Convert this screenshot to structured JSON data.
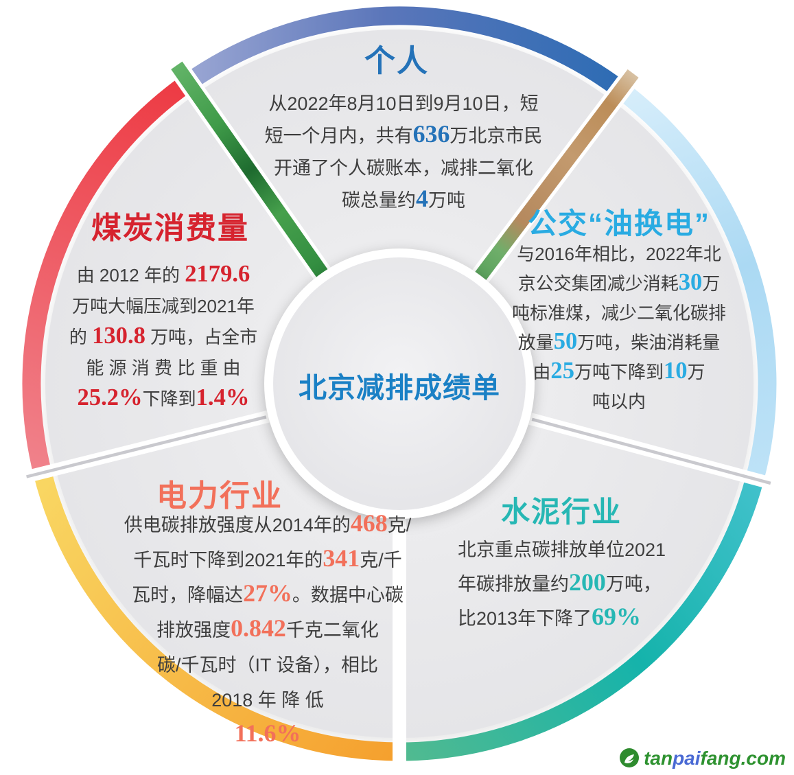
{
  "center": {
    "title": "北京减排成绩单"
  },
  "sections": {
    "personal": {
      "title": "个人",
      "accent_color": "#2472b8",
      "runs": [
        {
          "t": "从2022年8月10日到9月10日，短"
        },
        {
          "br": true
        },
        {
          "t": "短一个月内，共有"
        },
        {
          "t": "636",
          "hl": true
        },
        {
          "t": "万北京市民"
        },
        {
          "br": true
        },
        {
          "t": "开通了个人碳账本，减排二氧化"
        },
        {
          "br": true
        },
        {
          "t": "碳总量约"
        },
        {
          "t": "4",
          "hl": true
        },
        {
          "t": "万吨"
        }
      ]
    },
    "bus": {
      "title": "公交“油换电”",
      "accent_color": "#29abe2",
      "runs": [
        {
          "t": "与2016年相比，2022年北"
        },
        {
          "br": true
        },
        {
          "t": "京公交集团减少消耗"
        },
        {
          "t": "30",
          "hl": true
        },
        {
          "t": "万"
        },
        {
          "br": true
        },
        {
          "t": "吨标准煤，减少二氧化碳排"
        },
        {
          "br": true
        },
        {
          "t": "放量"
        },
        {
          "t": "50",
          "hl": true
        },
        {
          "t": "万吨，柴油消耗量"
        },
        {
          "br": true
        },
        {
          "t": "由"
        },
        {
          "t": "25",
          "hl": true
        },
        {
          "t": "万吨下降到"
        },
        {
          "t": "10",
          "hl": true
        },
        {
          "t": "万"
        },
        {
          "br": true
        },
        {
          "t": "吨以内"
        }
      ]
    },
    "cement": {
      "title": "水泥行业",
      "accent_color": "#26b7b4",
      "runs": [
        {
          "t": "北京重点碳排放单位2021"
        },
        {
          "br": true
        },
        {
          "t": "年碳排放量约"
        },
        {
          "t": "200",
          "hl": true
        },
        {
          "t": "万吨，"
        },
        {
          "br": true
        },
        {
          "t": "比2013年下降了"
        },
        {
          "t": "69%",
          "hl": true
        }
      ]
    },
    "power": {
      "title": "电力行业",
      "accent_color": "#f2705a",
      "runs": [
        {
          "t": "供电碳排放强度从2014年的"
        },
        {
          "t": "468",
          "hl": true
        },
        {
          "t": "克/"
        },
        {
          "br": true
        },
        {
          "t": "千瓦时下降到2021年的"
        },
        {
          "t": "341",
          "hl": true
        },
        {
          "t": "克/千"
        },
        {
          "br": true
        },
        {
          "t": "瓦时，降幅达"
        },
        {
          "t": "27%",
          "hl": true
        },
        {
          "t": "。数据中心碳"
        },
        {
          "br": true
        },
        {
          "t": "排放强度"
        },
        {
          "t": "0.842",
          "hl": true
        },
        {
          "t": "千克二氧化"
        },
        {
          "br": true
        },
        {
          "t": "碳/千瓦时（IT 设备），相比"
        },
        {
          "br": true
        },
        {
          "t": "2018 年 降 低"
        },
        {
          "br": true
        },
        {
          "t": "11.6%",
          "hl": true
        }
      ]
    },
    "coal": {
      "title": "煤炭消费量",
      "accent_color": "#d6232e",
      "runs": [
        {
          "t": "由 2012 年的 "
        },
        {
          "t": "2179.6",
          "hl": true
        },
        {
          "br": true
        },
        {
          "t": "万吨大幅压减到2021年"
        },
        {
          "br": true
        },
        {
          "t": "的 "
        },
        {
          "t": "130.8",
          "hl": true
        },
        {
          "t": " 万吨，占全市"
        },
        {
          "br": true
        },
        {
          "t": "能 源 消 费 比 重 由"
        },
        {
          "br": true
        },
        {
          "t": "25.2%",
          "hl": true
        },
        {
          "t": "下降到"
        },
        {
          "t": "1.4%",
          "hl": true
        }
      ]
    }
  },
  "wheel_colors": {
    "personal_arc": [
      "#9aa6d3",
      "#2d6cb4"
    ],
    "bus_arc": [
      "#d7eefb",
      "#abd9f3"
    ],
    "cement_arc": [
      "#41c1cb",
      "#15b3ab",
      "#51ba90"
    ],
    "power_arc": [
      "#f5a02e",
      "#f9d763"
    ],
    "coal_arc": [
      "#f0828b",
      "#ed3a43"
    ],
    "wedge_fill": "#eaeaec",
    "center_title_color": "#1a80c5"
  },
  "logo": {
    "icon": "sprout-icon",
    "part1": "tan",
    "part2": "pai",
    "part3": "fang.com"
  }
}
